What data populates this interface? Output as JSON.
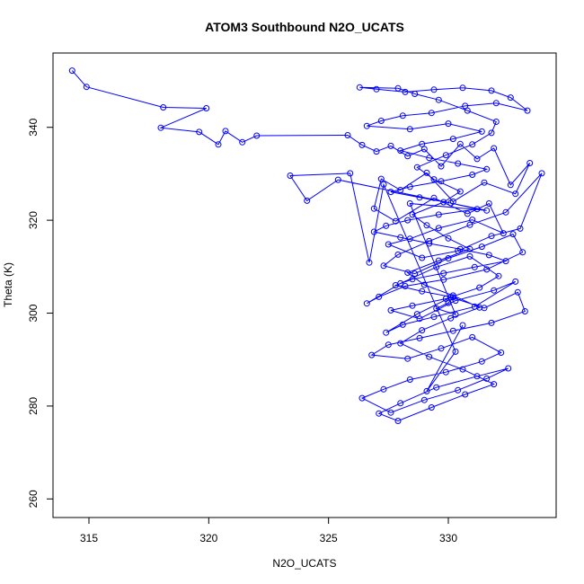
{
  "chart_data": {
    "type": "scatter",
    "title": "ATOM3 Southbound N2O_UCATS",
    "xlabel": "N2O_UCATS",
    "ylabel": "Theta (K)",
    "xlim": [
      313.5,
      334.5
    ],
    "ylim": [
      256,
      356
    ],
    "xticks": [
      315,
      320,
      325,
      330
    ],
    "yticks": [
      260,
      280,
      300,
      320,
      340
    ],
    "grid": false,
    "legend": "none",
    "color": "#0000ff",
    "marker": "open-circle",
    "connected": true,
    "series": [
      {
        "x": [
          314.3,
          314.9,
          318.1,
          319.9,
          318.0,
          319.6,
          320.4,
          320.7,
          321.4,
          322.0,
          325.8,
          326.4,
          327.0,
          327.6,
          328.3,
          329.0,
          329.7,
          330.5,
          331.2,
          331.9,
          332.6,
          333.4,
          332.8,
          331.5,
          330.2,
          329.1,
          328.0,
          327.2,
          326.9,
          327.8,
          329.4,
          330.8,
          331.7,
          332.3,
          331.0,
          329.6,
          328.4,
          327.5,
          328.9,
          330.4,
          331.8,
          333.0,
          333.9,
          332.4,
          330.9,
          329.2,
          327.9,
          327.3,
          328.6,
          330.0,
          331.4,
          332.7,
          333.1,
          331.6,
          329.8,
          328.2,
          327.1,
          326.6,
          328.0,
          329.5,
          330.9,
          332.1,
          331.3,
          329.9,
          328.5,
          327.6,
          328.8,
          330.3,
          331.9,
          332.8,
          331.1,
          329.4,
          328.1,
          327.4,
          328.7,
          330.1,
          331.5,
          332.9,
          333.2,
          331.8,
          330.2,
          328.8,
          327.5,
          326.8,
          328.3,
          329.7,
          331.0,
          332.2,
          331.4,
          329.9,
          328.4,
          327.3,
          326.4,
          327.6,
          329.0,
          330.4,
          331.6,
          332.5,
          331.2,
          329.5,
          328.0,
          327.1,
          327.9,
          329.3,
          330.7,
          331.9,
          330.6,
          329.2,
          328.0,
          328.9,
          330.1,
          331.3,
          330.2,
          329.0,
          328.3,
          329.6,
          330.9,
          330.0,
          329.1,
          328.5,
          329.8,
          330.5,
          329.4,
          328.7,
          329.9,
          331.0,
          331.8,
          332.0,
          330.8,
          329.6,
          328.6,
          327.9,
          326.3,
          327.0,
          328.2,
          329.4,
          330.6,
          331.8,
          332.6,
          333.3,
          332.0,
          330.7,
          329.3,
          328.1,
          327.2,
          326.6,
          328.4,
          330.0,
          331.4,
          330.2,
          328.9,
          328.0,
          329.2,
          330.4,
          331.6,
          331.0,
          329.7,
          328.4,
          327.6,
          328.8,
          330.1,
          331.2,
          329.6,
          328.3,
          327.4,
          326.9,
          328.0,
          329.2,
          330.5,
          331.7,
          332.4,
          331.1,
          329.8,
          328.5,
          327.8,
          328.9,
          330.2,
          330.0,
          329.5,
          330.3,
          328.4,
          331.6,
          325.4,
          324.1,
          323.4,
          325.9,
          326.7,
          327.3,
          330.3,
          329.1,
          330.6
        ],
        "y": [
          352.2,
          348.7,
          344.3,
          344.1,
          339.9,
          339.0,
          336.3,
          339.2,
          336.8,
          338.2,
          338.3,
          336.2,
          334.8,
          336.0,
          333.8,
          335.3,
          331.6,
          336.4,
          333.2,
          335.5,
          327.6,
          332.3,
          325.7,
          328.1,
          324.0,
          330.2,
          326.5,
          328.9,
          322.5,
          319.8,
          324.8,
          321.4,
          323.6,
          317.2,
          320.1,
          318.3,
          316.0,
          314.8,
          311.9,
          313.4,
          316.6,
          318.2,
          330.1,
          321.7,
          319.0,
          315.5,
          312.6,
          310.2,
          308.5,
          311.8,
          314.3,
          317.0,
          313.1,
          309.4,
          307.2,
          305.8,
          303.5,
          302.1,
          306.4,
          309.9,
          312.2,
          308.0,
          305.5,
          303.1,
          301.6,
          300.6,
          298.8,
          302.7,
          304.9,
          306.8,
          301.4,
          299.2,
          297.5,
          295.8,
          299.8,
          303.4,
          301.1,
          304.5,
          300.4,
          297.9,
          296.2,
          294.6,
          293.2,
          291.0,
          290.2,
          292.4,
          294.8,
          291.5,
          289.6,
          287.3,
          285.7,
          283.6,
          281.7,
          278.6,
          281.3,
          283.4,
          285.9,
          288.1,
          286.4,
          284.0,
          280.6,
          278.4,
          276.8,
          279.7,
          282.5,
          284.7,
          287.9,
          290.6,
          293.5,
          296.3,
          298.9,
          301.2,
          303.8,
          306.1,
          308.7,
          311.3,
          313.8,
          316.1,
          318.9,
          321.2,
          323.9,
          326.2,
          328.8,
          331.4,
          334.0,
          336.3,
          338.8,
          341.2,
          343.6,
          345.9,
          347.2,
          348.4,
          348.6,
          348.2,
          347.6,
          348.1,
          348.5,
          347.9,
          346.4,
          343.6,
          345.2,
          344.6,
          343.1,
          342.5,
          341.4,
          340.3,
          339.6,
          340.8,
          339.1,
          337.5,
          336.4,
          335.0,
          333.4,
          332.2,
          331.0,
          329.8,
          328.4,
          327.2,
          326.1,
          324.9,
          323.7,
          322.4,
          321.2,
          320.0,
          318.8,
          317.5,
          316.3,
          315.0,
          313.8,
          312.5,
          311.2,
          309.9,
          308.6,
          307.3,
          306.0,
          304.7,
          303.4,
          302.2,
          301.0,
          299.7,
          323.6,
          322.1,
          328.7,
          324.2,
          329.6,
          330.1,
          310.9,
          327.7,
          291.7,
          283.2,
          297.4
        ]
      }
    ]
  }
}
